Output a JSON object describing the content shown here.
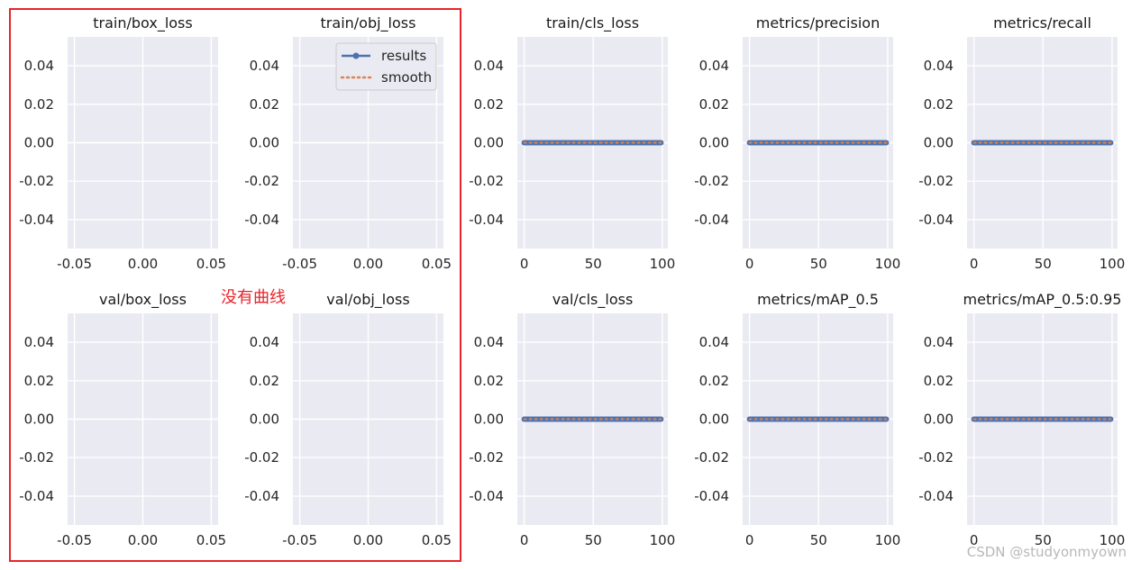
{
  "chart_data": {
    "type": "line",
    "layout": "2x5 grid of subplots",
    "style": {
      "axes_background": "#eaeaf2",
      "grid_color": "#ffffff",
      "results_color": "#4c72b0",
      "smooth_color": "#dd8452",
      "highlight_color": "#e8232a"
    },
    "legend": {
      "placement": "upper-right of train/obj_loss",
      "entries": [
        "results",
        "smooth"
      ]
    },
    "subplots": [
      {
        "title": "train/box_loss",
        "xlim": [
          -0.055,
          0.055
        ],
        "ylim": [
          -0.055,
          0.055
        ],
        "xticks": [
          "-0.05",
          "0.00",
          "0.05"
        ],
        "yticks": [
          "0.04",
          "0.02",
          "0.00",
          "-0.02",
          "-0.04"
        ],
        "series": []
      },
      {
        "title": "train/obj_loss",
        "xlim": [
          -0.055,
          0.055
        ],
        "ylim": [
          -0.055,
          0.055
        ],
        "xticks": [
          "-0.05",
          "0.00",
          "0.05"
        ],
        "yticks": [
          "0.04",
          "0.02",
          "0.00",
          "-0.02",
          "-0.04"
        ],
        "series": [],
        "legend": true
      },
      {
        "title": "train/cls_loss",
        "xlim": [
          -4.95,
          103.95
        ],
        "ylim": [
          -0.055,
          0.055
        ],
        "xticks": [
          "0",
          "50",
          "100"
        ],
        "yticks": [
          "0.04",
          "0.02",
          "0.00",
          "-0.02",
          "-0.04"
        ],
        "series": [
          {
            "name": "results",
            "x_range": [
              0,
              99
            ],
            "y": 0
          },
          {
            "name": "smooth",
            "x_range": [
              0,
              99
            ],
            "y": 0
          }
        ]
      },
      {
        "title": "metrics/precision",
        "xlim": [
          -4.95,
          103.95
        ],
        "ylim": [
          -0.055,
          0.055
        ],
        "xticks": [
          "0",
          "50",
          "100"
        ],
        "yticks": [
          "0.04",
          "0.02",
          "0.00",
          "-0.02",
          "-0.04"
        ],
        "series": [
          {
            "name": "results",
            "x_range": [
              0,
              99
            ],
            "y": 0
          },
          {
            "name": "smooth",
            "x_range": [
              0,
              99
            ],
            "y": 0
          }
        ]
      },
      {
        "title": "metrics/recall",
        "xlim": [
          -4.95,
          103.95
        ],
        "ylim": [
          -0.055,
          0.055
        ],
        "xticks": [
          "0",
          "50",
          "100"
        ],
        "yticks": [
          "0.04",
          "0.02",
          "0.00",
          "-0.02",
          "-0.04"
        ],
        "series": [
          {
            "name": "results",
            "x_range": [
              0,
              99
            ],
            "y": 0
          },
          {
            "name": "smooth",
            "x_range": [
              0,
              99
            ],
            "y": 0
          }
        ]
      },
      {
        "title": "val/box_loss",
        "xlim": [
          -0.055,
          0.055
        ],
        "ylim": [
          -0.055,
          0.055
        ],
        "xticks": [
          "-0.05",
          "0.00",
          "0.05"
        ],
        "yticks": [
          "0.04",
          "0.02",
          "0.00",
          "-0.02",
          "-0.04"
        ],
        "series": []
      },
      {
        "title": "val/obj_loss",
        "xlim": [
          -0.055,
          0.055
        ],
        "ylim": [
          -0.055,
          0.055
        ],
        "xticks": [
          "-0.05",
          "0.00",
          "0.05"
        ],
        "yticks": [
          "0.04",
          "0.02",
          "0.00",
          "-0.02",
          "-0.04"
        ],
        "series": []
      },
      {
        "title": "val/cls_loss",
        "xlim": [
          -4.95,
          103.95
        ],
        "ylim": [
          -0.055,
          0.055
        ],
        "xticks": [
          "0",
          "50",
          "100"
        ],
        "yticks": [
          "0.04",
          "0.02",
          "0.00",
          "-0.02",
          "-0.04"
        ],
        "series": [
          {
            "name": "results",
            "x_range": [
              0,
              99
            ],
            "y": 0
          },
          {
            "name": "smooth",
            "x_range": [
              0,
              99
            ],
            "y": 0
          }
        ]
      },
      {
        "title": "metrics/mAP_0.5",
        "xlim": [
          -4.95,
          103.95
        ],
        "ylim": [
          -0.055,
          0.055
        ],
        "xticks": [
          "0",
          "50",
          "100"
        ],
        "yticks": [
          "0.04",
          "0.02",
          "0.00",
          "-0.02",
          "-0.04"
        ],
        "series": [
          {
            "name": "results",
            "x_range": [
              0,
              99
            ],
            "y": 0
          },
          {
            "name": "smooth",
            "x_range": [
              0,
              99
            ],
            "y": 0
          }
        ]
      },
      {
        "title": "metrics/mAP_0.5:0.95",
        "xlim": [
          -4.95,
          103.95
        ],
        "ylim": [
          -0.055,
          0.055
        ],
        "xticks": [
          "0",
          "50",
          "100"
        ],
        "yticks": [
          "0.04",
          "0.02",
          "0.00",
          "-0.02",
          "-0.04"
        ],
        "series": [
          {
            "name": "results",
            "x_range": [
              0,
              99
            ],
            "y": 0
          },
          {
            "name": "smooth",
            "x_range": [
              0,
              99
            ],
            "y": 0
          }
        ]
      }
    ]
  },
  "annotation": {
    "text": "没有曲线"
  },
  "watermark": {
    "text": "CSDN @studyonmyown"
  }
}
